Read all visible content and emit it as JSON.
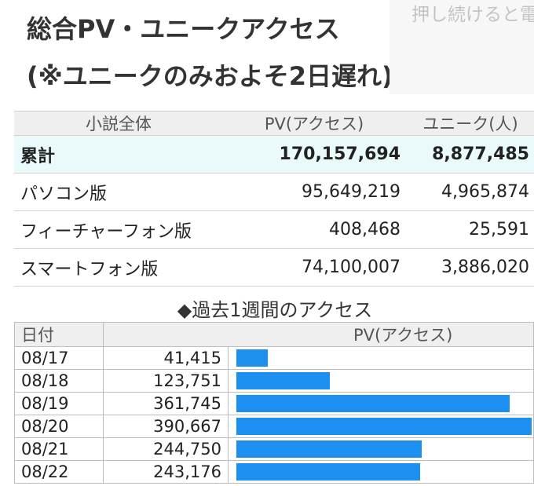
{
  "header": {
    "title_line1": "総合PV・ユニークアクセス",
    "title_line2": "(※ユニークのみおよそ2日遅れ)",
    "hint": "押し続けると電源メニュー"
  },
  "summary": {
    "columns": [
      "小説全体",
      "PV(アクセス)",
      "ユニーク(人)"
    ],
    "rows": [
      {
        "label": "累計",
        "pv": "170,157,694",
        "unique": "8,877,485"
      },
      {
        "label": "パソコン版",
        "pv": "95,649,219",
        "unique": "4,965,874"
      },
      {
        "label": "フィーチャーフォン版",
        "pv": "408,468",
        "unique": "25,591"
      },
      {
        "label": "スマートフォン版",
        "pv": "74,100,007",
        "unique": "3,886,020"
      }
    ]
  },
  "weekly": {
    "heading": "◆過去1週間のアクセス",
    "columns": [
      "日付",
      "PV(アクセス)"
    ],
    "bar_color": "#1d8ff0",
    "rows": [
      {
        "date": "08/17",
        "pv": "41,415",
        "value": 41415
      },
      {
        "date": "08/18",
        "pv": "123,751",
        "value": 123751
      },
      {
        "date": "08/19",
        "pv": "361,745",
        "value": 361745
      },
      {
        "date": "08/20",
        "pv": "390,667",
        "value": 390667
      },
      {
        "date": "08/21",
        "pv": "244,750",
        "value": 244750
      },
      {
        "date": "08/22",
        "pv": "243,176",
        "value": 243176
      }
    ]
  }
}
